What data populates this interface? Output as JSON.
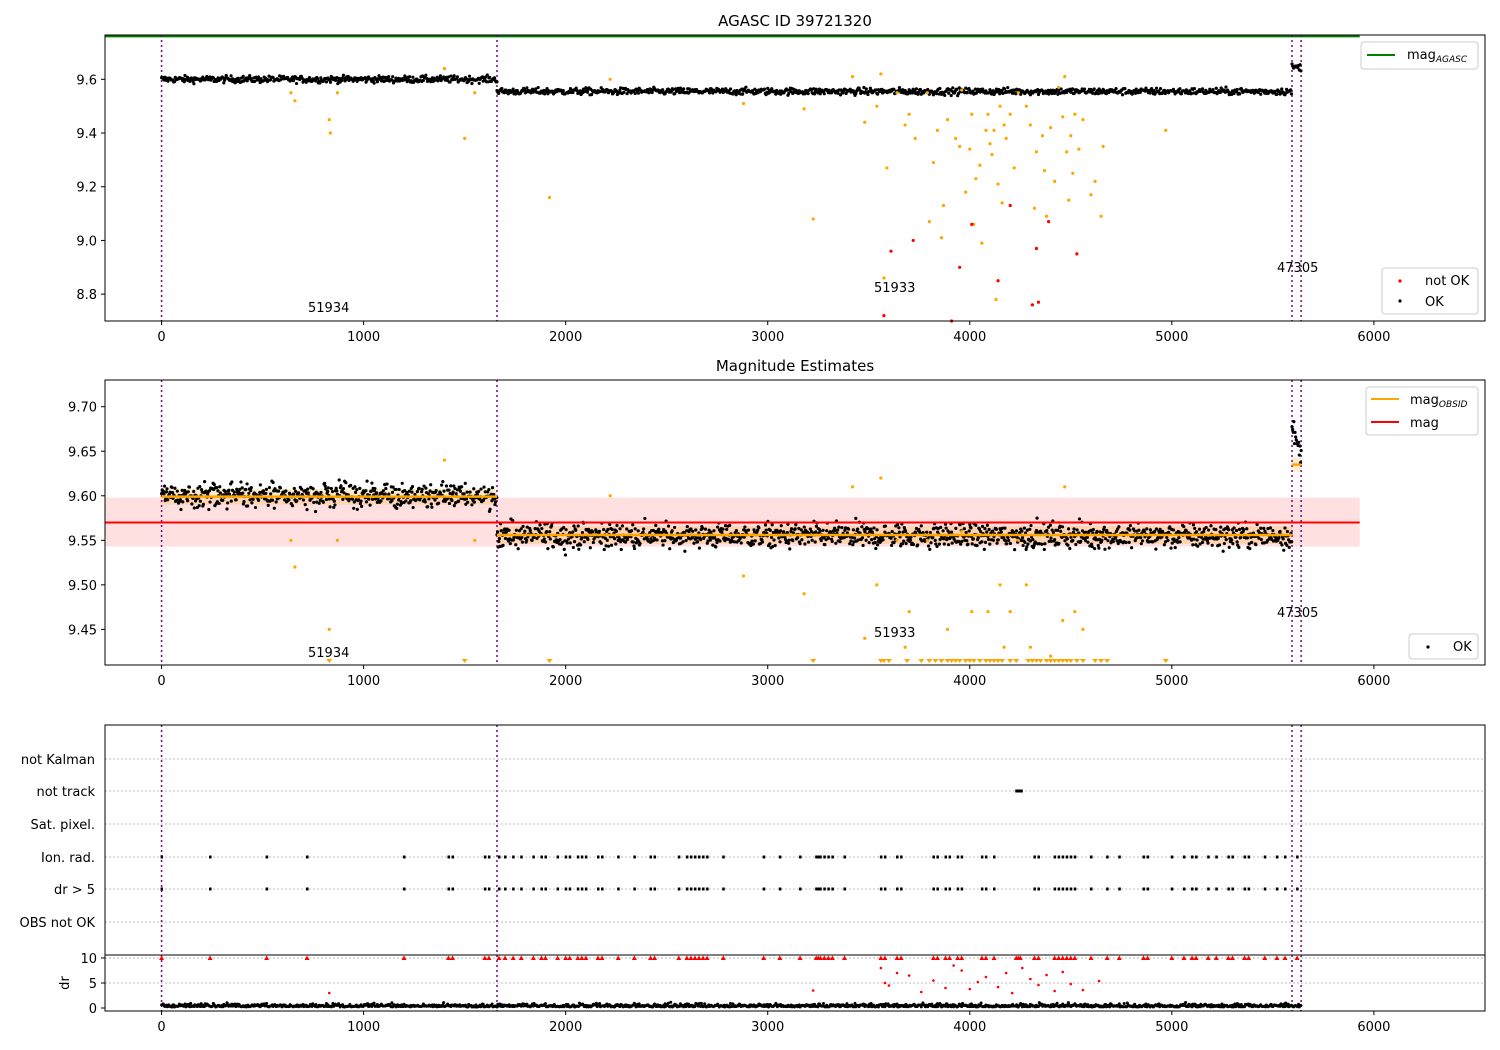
{
  "figure": {
    "panel1": {
      "title": "AGASC ID 39721320",
      "legend_line": {
        "label": "mag",
        "sub": "AGASC",
        "color": "#008000"
      },
      "legend_points": [
        {
          "label": "not OK",
          "color": "#ff0000"
        },
        {
          "label": "OK",
          "color": "#000000"
        }
      ],
      "obsid_labels": [
        "51934",
        "51933",
        "47305"
      ]
    },
    "panel2": {
      "title": "Magnitude Estimates",
      "legend_lines": [
        {
          "label": "mag",
          "sub": "OBSID",
          "color": "#ffa500"
        },
        {
          "label": "mag",
          "sub": "",
          "color": "#ff0000"
        }
      ],
      "legend_points": [
        {
          "label": "OK",
          "color": "#000000"
        }
      ],
      "obsid_labels": [
        "51934",
        "51933",
        "47305"
      ]
    },
    "panel3": {
      "flag_labels": [
        "not Kalman",
        "not track",
        "Sat. pixel.",
        "Ion. rad.",
        "dr > 5",
        "OBS not OK"
      ]
    },
    "panel4": {
      "ylabel": "dr"
    }
  },
  "chart_data": [
    {
      "type": "scatter",
      "title": "AGASC ID 39721320",
      "xlabel": "",
      "ylabel": "",
      "xlim": [
        -280,
        6550
      ],
      "ylim": [
        8.7,
        9.765
      ],
      "xticks": [
        0,
        1000,
        2000,
        3000,
        4000,
        5000,
        6000
      ],
      "yticks": [
        8.8,
        9.0,
        9.2,
        9.4,
        9.6
      ],
      "ytick_labels": [
        "8.8",
        "9.0",
        "9.2",
        "9.4",
        "9.6"
      ],
      "reference_lines": [
        {
          "name": "mag_AGASC",
          "y": 9.76,
          "x_range": [
            -280,
            5930
          ],
          "color": "#008000"
        }
      ],
      "obsid_boundaries": [
        0,
        1660,
        5595,
        5640
      ],
      "obsids": [
        {
          "id": "51934",
          "x_range": [
            0,
            1660
          ],
          "ok_mean": 9.6
        },
        {
          "id": "51933",
          "x_range": [
            1660,
            5595
          ],
          "ok_mean": 9.555
        },
        {
          "id": "47305",
          "x_range": [
            5595,
            5640
          ],
          "ok_mean": 9.635
        }
      ],
      "series": [
        {
          "name": "OK",
          "color": "#000000",
          "note": "dense band of ~5600 points, sampled"
        },
        {
          "name": "not OK",
          "color": "#ff0000",
          "points": [
            [
              3575,
              8.72
            ],
            [
              3610,
              8.96
            ],
            [
              3720,
              9.0
            ],
            [
              3910,
              8.7
            ],
            [
              3950,
              8.9
            ],
            [
              4010,
              9.06
            ],
            [
              4140,
              8.85
            ],
            [
              4200,
              9.13
            ],
            [
              4310,
              8.76
            ],
            [
              4340,
              8.77
            ],
            [
              4330,
              8.97
            ],
            [
              4390,
              9.07
            ],
            [
              4530,
              8.95
            ]
          ]
        },
        {
          "name": "suspect",
          "color": "#ffa500",
          "points": [
            [
              640,
              9.55
            ],
            [
              660,
              9.52
            ],
            [
              830,
              9.45
            ],
            [
              835,
              9.4
            ],
            [
              870,
              9.55
            ],
            [
              1400,
              9.64
            ],
            [
              1500,
              9.38
            ],
            [
              1550,
              9.55
            ],
            [
              1920,
              9.16
            ],
            [
              2220,
              9.6
            ],
            [
              2880,
              9.51
            ],
            [
              3180,
              9.49
            ],
            [
              3225,
              9.08
            ],
            [
              3420,
              9.61
            ],
            [
              3480,
              9.44
            ],
            [
              3540,
              9.5
            ],
            [
              3560,
              9.62
            ],
            [
              3575,
              8.86
            ],
            [
              3590,
              9.27
            ],
            [
              3640,
              9.55
            ],
            [
              3680,
              9.43
            ],
            [
              3700,
              9.47
            ],
            [
              3730,
              9.38
            ],
            [
              3790,
              9.55
            ],
            [
              3800,
              9.07
            ],
            [
              3820,
              9.29
            ],
            [
              3840,
              9.41
            ],
            [
              3860,
              9.01
            ],
            [
              3870,
              9.13
            ],
            [
              3890,
              9.45
            ],
            [
              3930,
              9.38
            ],
            [
              3950,
              9.35
            ],
            [
              3960,
              9.56
            ],
            [
              3980,
              9.18
            ],
            [
              4000,
              9.34
            ],
            [
              4010,
              9.47
            ],
            [
              4020,
              9.06
            ],
            [
              4030,
              9.23
            ],
            [
              4050,
              9.28
            ],
            [
              4060,
              8.99
            ],
            [
              4080,
              9.41
            ],
            [
              4090,
              9.47
            ],
            [
              4100,
              9.36
            ],
            [
              4110,
              9.32
            ],
            [
              4120,
              9.41
            ],
            [
              4130,
              8.78
            ],
            [
              4140,
              9.21
            ],
            [
              4150,
              9.5
            ],
            [
              4160,
              9.14
            ],
            [
              4170,
              9.43
            ],
            [
              4180,
              9.38
            ],
            [
              4200,
              9.47
            ],
            [
              4220,
              9.27
            ],
            [
              4240,
              9.55
            ],
            [
              4280,
              9.5
            ],
            [
              4300,
              9.43
            ],
            [
              4320,
              9.12
            ],
            [
              4330,
              9.33
            ],
            [
              4360,
              9.39
            ],
            [
              4370,
              9.26
            ],
            [
              4380,
              9.09
            ],
            [
              4400,
              9.42
            ],
            [
              4420,
              9.22
            ],
            [
              4440,
              9.57
            ],
            [
              4460,
              9.46
            ],
            [
              4470,
              9.61
            ],
            [
              4480,
              9.33
            ],
            [
              4490,
              9.15
            ],
            [
              4500,
              9.39
            ],
            [
              4510,
              9.25
            ],
            [
              4520,
              9.47
            ],
            [
              4540,
              9.34
            ],
            [
              4560,
              9.45
            ],
            [
              4600,
              9.17
            ],
            [
              4620,
              9.22
            ],
            [
              4650,
              9.09
            ],
            [
              4660,
              9.35
            ],
            [
              4970,
              9.41
            ]
          ]
        }
      ]
    },
    {
      "type": "scatter",
      "title": "Magnitude Estimates",
      "xlim": [
        -280,
        6550
      ],
      "ylim": [
        9.41,
        9.73
      ],
      "xticks": [
        0,
        1000,
        2000,
        3000,
        4000,
        5000,
        6000
      ],
      "yticks": [
        9.45,
        9.5,
        9.55,
        9.6,
        9.65,
        9.7
      ],
      "ytick_labels": [
        "9.45",
        "9.50",
        "9.55",
        "9.60",
        "9.65",
        "9.70"
      ],
      "mag": {
        "value": 9.57,
        "band": [
          9.543,
          9.598
        ],
        "x_range": [
          -280,
          5930
        ],
        "color": "#ff0000"
      },
      "mag_obsid": [
        {
          "id": "51934",
          "x_range": [
            0,
            1660
          ],
          "value": 9.599,
          "band": [
            9.59,
            9.608
          ]
        },
        {
          "id": "51933",
          "x_range": [
            1660,
            5595
          ],
          "value": 9.556,
          "band": [
            9.546,
            9.566
          ]
        },
        {
          "id": "47305",
          "x_range": [
            5595,
            5640
          ],
          "value": 9.635,
          "band": [
            9.627,
            9.643
          ]
        }
      ],
      "series": [
        {
          "name": "OK",
          "color": "#000000",
          "note": "dense band, sampled"
        },
        {
          "name": "suspect (clipped at lower limit shown as triangles)",
          "color": "#ffa500",
          "clipped_x": [
            830,
            1500,
            1920,
            3225,
            3560,
            3575,
            3600,
            3690,
            3760,
            3800,
            3830,
            3860,
            3890,
            3910,
            3930,
            3950,
            3980,
            4000,
            4020,
            4050,
            4080,
            4100,
            4120,
            4140,
            4160,
            4200,
            4230,
            4290,
            4310,
            4330,
            4350,
            4380,
            4400,
            4420,
            4440,
            4460,
            4480,
            4500,
            4530,
            4560,
            4620,
            4650,
            4680,
            4970
          ]
        }
      ]
    },
    {
      "type": "scatter",
      "title": "",
      "xlim": [
        -280,
        6550
      ],
      "categories": [
        "not Kalman",
        "not track",
        "Sat. pixel.",
        "Ion. rad.",
        "dr > 5",
        "OBS not OK"
      ],
      "flag_points": {
        "not track": [
          4230,
          4235,
          4240,
          4245,
          4250,
          4255
        ],
        "Ion. rad.": [
          0,
          240,
          520,
          720,
          1200,
          1420,
          1440,
          1600,
          1620,
          1670,
          1700,
          1740,
          1780,
          1840,
          1880,
          1900,
          1960,
          2000,
          2020,
          2060,
          2080,
          2100,
          2160,
          2180,
          2260,
          2340,
          2420,
          2440,
          2560,
          2600,
          2620,
          2640,
          2660,
          2680,
          2700,
          2780,
          2980,
          3060,
          3160,
          3240,
          3250,
          3260,
          3280,
          3300,
          3320,
          3380,
          3560,
          3580,
          3640,
          3660,
          3820,
          3840,
          3880,
          3900,
          3940,
          3960,
          4060,
          4080,
          4120,
          4320,
          4340,
          4420,
          4440,
          4460,
          4480,
          4500,
          4520,
          4600,
          4680,
          4740,
          4860,
          4880,
          5000,
          5060,
          5100,
          5120,
          5180,
          5220,
          5280,
          5300,
          5360,
          5380,
          5460,
          5520,
          5560,
          5620
        ],
        "dr > 5": [
          0,
          240,
          520,
          720,
          1200,
          1420,
          1440,
          1600,
          1620,
          1670,
          1700,
          1740,
          1780,
          1840,
          1880,
          1900,
          1960,
          2000,
          2020,
          2060,
          2080,
          2100,
          2160,
          2180,
          2260,
          2340,
          2420,
          2440,
          2560,
          2600,
          2620,
          2640,
          2660,
          2680,
          2700,
          2780,
          2980,
          3060,
          3160,
          3240,
          3250,
          3260,
          3280,
          3300,
          3320,
          3380,
          3560,
          3580,
          3640,
          3660,
          3820,
          3840,
          3880,
          3900,
          3940,
          3960,
          4060,
          4080,
          4120,
          4320,
          4340,
          4420,
          4440,
          4460,
          4480,
          4500,
          4520,
          4600,
          4680,
          4740,
          4860,
          4880,
          5000,
          5060,
          5100,
          5120,
          5180,
          5220,
          5280,
          5300,
          5360,
          5380,
          5460,
          5520,
          5560,
          5620
        ]
      }
    },
    {
      "type": "scatter",
      "title": "",
      "xlabel": "",
      "ylabel": "dr",
      "xlim": [
        -280,
        6550
      ],
      "ylim": [
        -0.6,
        10.6
      ],
      "xticks": [
        0,
        1000,
        2000,
        3000,
        4000,
        5000,
        6000
      ],
      "yticks": [
        0,
        5,
        10
      ],
      "ytick_labels": [
        "0",
        "5",
        "10"
      ],
      "series": [
        {
          "name": "OK dr",
          "color": "#000000",
          "note": "dense band near 0-2, sampled"
        },
        {
          "name": "not OK dr",
          "color": "#ff0000",
          "points": [
            [
              830,
              3.0
            ],
            [
              3225,
              3.5
            ],
            [
              3560,
              8.0
            ],
            [
              3580,
              5.0
            ],
            [
              3600,
              4.5
            ],
            [
              3640,
              7.0
            ],
            [
              3700,
              6.5
            ],
            [
              3760,
              3.2
            ],
            [
              3820,
              5.5
            ],
            [
              3880,
              4.0
            ],
            [
              3920,
              8.5
            ],
            [
              3960,
              7.5
            ],
            [
              4000,
              3.8
            ],
            [
              4040,
              5.2
            ],
            [
              4080,
              6.2
            ],
            [
              4140,
              4.2
            ],
            [
              4180,
              7.0
            ],
            [
              4210,
              3.0
            ],
            [
              4260,
              8.0
            ],
            [
              4300,
              5.8
            ],
            [
              4340,
              4.6
            ],
            [
              4380,
              6.6
            ],
            [
              4420,
              3.4
            ],
            [
              4460,
              7.2
            ],
            [
              4500,
              4.8
            ],
            [
              4560,
              3.6
            ],
            [
              4640,
              5.4
            ]
          ],
          "capped_x": [
            0,
            240,
            520,
            720,
            1200,
            1420,
            1440,
            1600,
            1620,
            1670,
            1700,
            1740,
            1780,
            1840,
            1880,
            1900,
            1960,
            2000,
            2020,
            2060,
            2080,
            2100,
            2160,
            2180,
            2260,
            2340,
            2420,
            2440,
            2560,
            2600,
            2620,
            2640,
            2660,
            2680,
            2700,
            2780,
            2980,
            3060,
            3160,
            3240,
            3250,
            3260,
            3280,
            3300,
            3320,
            3380,
            3560,
            3580,
            3640,
            3660,
            3820,
            3840,
            3880,
            3900,
            3940,
            3960,
            4060,
            4080,
            4120,
            4230,
            4240,
            4250,
            4320,
            4340,
            4420,
            4440,
            4460,
            4480,
            4500,
            4520,
            4600,
            4680,
            4740,
            4860,
            4880,
            5000,
            5060,
            5100,
            5120,
            5180,
            5220,
            5280,
            5300,
            5360,
            5380,
            5460,
            5520,
            5560,
            5620
          ]
        }
      ]
    }
  ]
}
